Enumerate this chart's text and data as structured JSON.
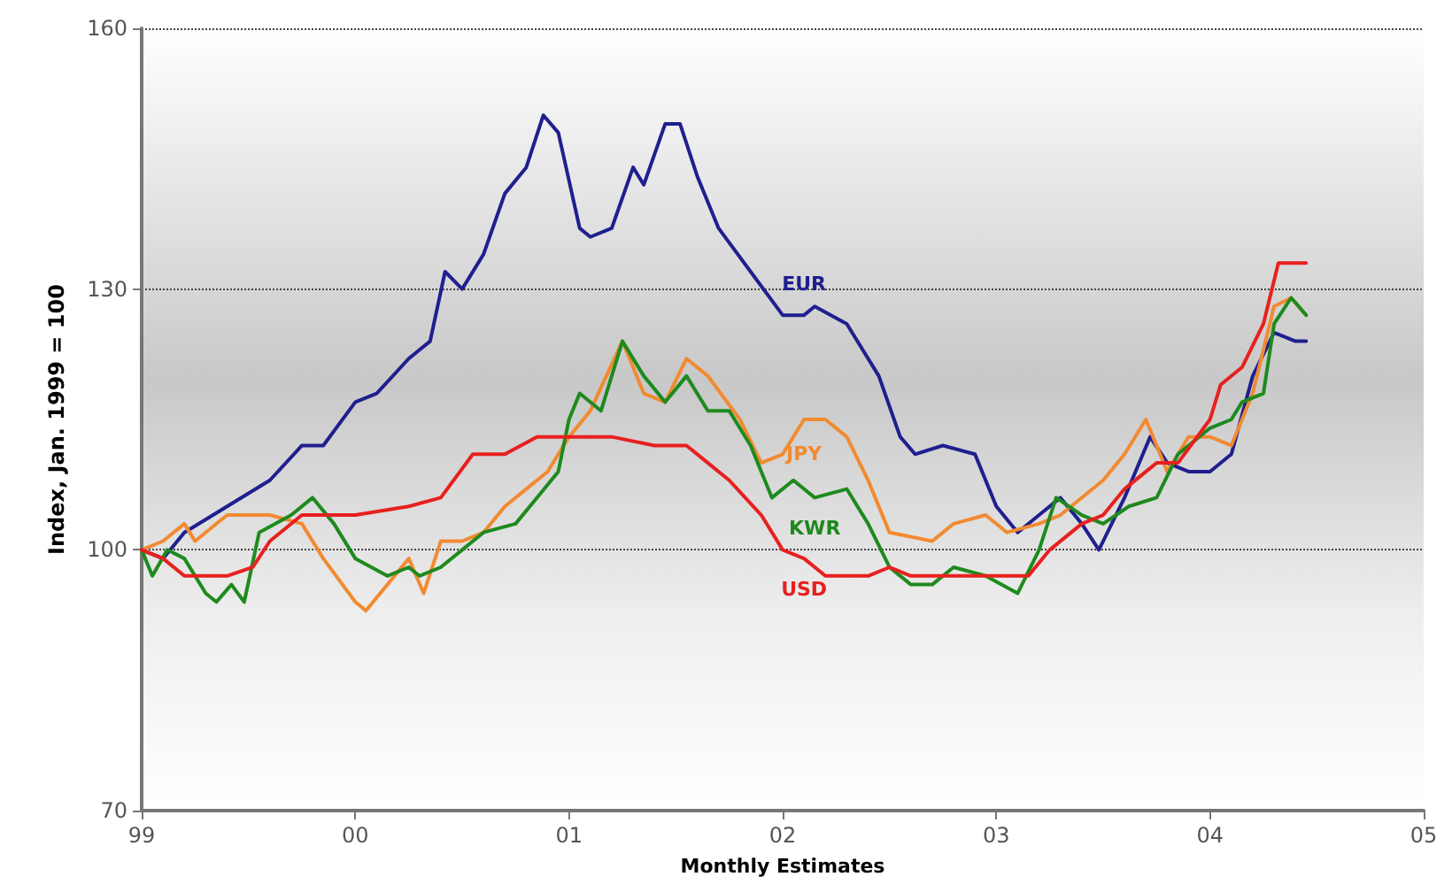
{
  "chart_data": {
    "type": "line",
    "xlabel": "Monthly Estimates",
    "ylabel": "Index, Jan. 1999 = 100",
    "xlim": [
      1999,
      2005
    ],
    "xticks": [
      {
        "value": 1999,
        "label": "99"
      },
      {
        "value": 2000,
        "label": "00"
      },
      {
        "value": 2001,
        "label": "01"
      },
      {
        "value": 2002,
        "label": "02"
      },
      {
        "value": 2003,
        "label": "03"
      },
      {
        "value": 2004,
        "label": "04"
      },
      {
        "value": 2005,
        "label": "05"
      }
    ],
    "ylim": [
      70,
      160
    ],
    "yticks": [
      70,
      100,
      130,
      160
    ],
    "grid": "y",
    "legend": false,
    "marker": "none",
    "line_style": "solid",
    "series": [
      {
        "name": "EUR",
        "color": "#1f1f8f",
        "x": [
          1999,
          1999.1,
          1999.2,
          1999.4,
          1999.6,
          1999.75,
          1999.85,
          2000,
          2000.1,
          2000.25,
          2000.35,
          2000.42,
          2000.5,
          2000.6,
          2000.7,
          2000.8,
          2000.88,
          2000.95,
          2001.05,
          2001.1,
          2001.2,
          2001.3,
          2001.35,
          2001.45,
          2001.52,
          2001.6,
          2001.7,
          2001.85,
          2002,
          2002.1,
          2002.15,
          2002.3,
          2002.45,
          2002.55,
          2002.62,
          2002.75,
          2002.9,
          2003,
          2003.1,
          2003.2,
          2003.3,
          2003.4,
          2003.48,
          2003.6,
          2003.72,
          2003.8,
          2003.9,
          2004,
          2004.1,
          2004.2,
          2004.3,
          2004.4,
          2004.45
        ],
        "values": [
          100,
          99,
          102,
          105,
          108,
          112,
          112,
          117,
          118,
          122,
          124,
          132,
          130,
          134,
          141,
          144,
          150,
          148,
          137,
          136,
          137,
          144,
          142,
          149,
          149,
          143,
          137,
          132,
          127,
          127,
          128,
          126,
          120,
          113,
          111,
          112,
          111,
          105,
          102,
          104,
          106,
          103,
          100,
          106,
          113,
          110,
          109,
          109,
          111,
          120,
          125,
          124,
          124
        ]
      },
      {
        "name": "JPY",
        "color": "#f28a30",
        "x": [
          1999,
          1999.1,
          1999.2,
          1999.25,
          1999.4,
          1999.6,
          1999.75,
          1999.85,
          2000,
          2000.05,
          2000.15,
          2000.25,
          2000.32,
          2000.4,
          2000.5,
          2000.6,
          2000.7,
          2000.8,
          2000.9,
          2001,
          2001.1,
          2001.25,
          2001.35,
          2001.45,
          2001.55,
          2001.65,
          2001.8,
          2001.9,
          2002,
          2002.1,
          2002.2,
          2002.3,
          2002.4,
          2002.5,
          2002.7,
          2002.8,
          2002.95,
          2003.05,
          2003.2,
          2003.3,
          2003.5,
          2003.6,
          2003.7,
          2003.8,
          2003.9,
          2004,
          2004.1,
          2004.2,
          2004.3,
          2004.38,
          2004.45
        ],
        "values": [
          100,
          101,
          103,
          101,
          104,
          104,
          103,
          99,
          94,
          93,
          96,
          99,
          95,
          101,
          101,
          102,
          105,
          107,
          109,
          113,
          116,
          124,
          118,
          117,
          122,
          120,
          115,
          110,
          111,
          115,
          115,
          113,
          108,
          102,
          101,
          103,
          104,
          102,
          103,
          104,
          108,
          111,
          115,
          109,
          113,
          113,
          112,
          118,
          128,
          129,
          127
        ]
      },
      {
        "name": "KWR",
        "color": "#1e8a1e",
        "x": [
          1999,
          1999.05,
          1999.12,
          1999.2,
          1999.3,
          1999.35,
          1999.42,
          1999.48,
          1999.55,
          1999.7,
          1999.8,
          1999.9,
          2000,
          2000.15,
          2000.25,
          2000.3,
          2000.4,
          2000.5,
          2000.6,
          2000.75,
          2000.85,
          2000.95,
          2001,
          2001.05,
          2001.15,
          2001.25,
          2001.35,
          2001.45,
          2001.55,
          2001.65,
          2001.75,
          2001.85,
          2001.95,
          2002.05,
          2002.15,
          2002.3,
          2002.4,
          2002.5,
          2002.6,
          2002.7,
          2002.8,
          2002.95,
          2003.1,
          2003.2,
          2003.28,
          2003.4,
          2003.5,
          2003.62,
          2003.75,
          2003.85,
          2004,
          2004.1,
          2004.15,
          2004.25,
          2004.3,
          2004.38,
          2004.45
        ],
        "values": [
          100,
          97,
          100,
          99,
          95,
          94,
          96,
          94,
          102,
          104,
          106,
          103,
          99,
          97,
          98,
          97,
          98,
          100,
          102,
          103,
          106,
          109,
          115,
          118,
          116,
          124,
          120,
          117,
          120,
          116,
          116,
          112,
          106,
          108,
          106,
          107,
          103,
          98,
          96,
          96,
          98,
          97,
          95,
          100,
          106,
          104,
          103,
          105,
          106,
          111,
          114,
          115,
          117,
          118,
          126,
          129,
          127
        ]
      },
      {
        "name": "USD",
        "color": "#e8201e",
        "x": [
          1999,
          1999.1,
          1999.2,
          1999.4,
          1999.52,
          1999.6,
          1999.75,
          1999.9,
          2000,
          2000.25,
          2000.4,
          2000.55,
          2000.7,
          2000.85,
          2001,
          2001.2,
          2001.4,
          2001.55,
          2001.65,
          2001.75,
          2001.9,
          2002,
          2002.1,
          2002.2,
          2002.4,
          2002.5,
          2002.6,
          2002.8,
          2003,
          2003.15,
          2003.25,
          2003.4,
          2003.5,
          2003.6,
          2003.75,
          2003.85,
          2004,
          2004.05,
          2004.15,
          2004.25,
          2004.32,
          2004.45
        ],
        "values": [
          100,
          99,
          97,
          97,
          98,
          101,
          104,
          104,
          104,
          105,
          106,
          111,
          111,
          113,
          113,
          113,
          112,
          112,
          110,
          108,
          104,
          100,
          99,
          97,
          97,
          98,
          97,
          97,
          97,
          97,
          100,
          103,
          104,
          107,
          110,
          110,
          115,
          119,
          121,
          126,
          133,
          133
        ]
      }
    ]
  }
}
